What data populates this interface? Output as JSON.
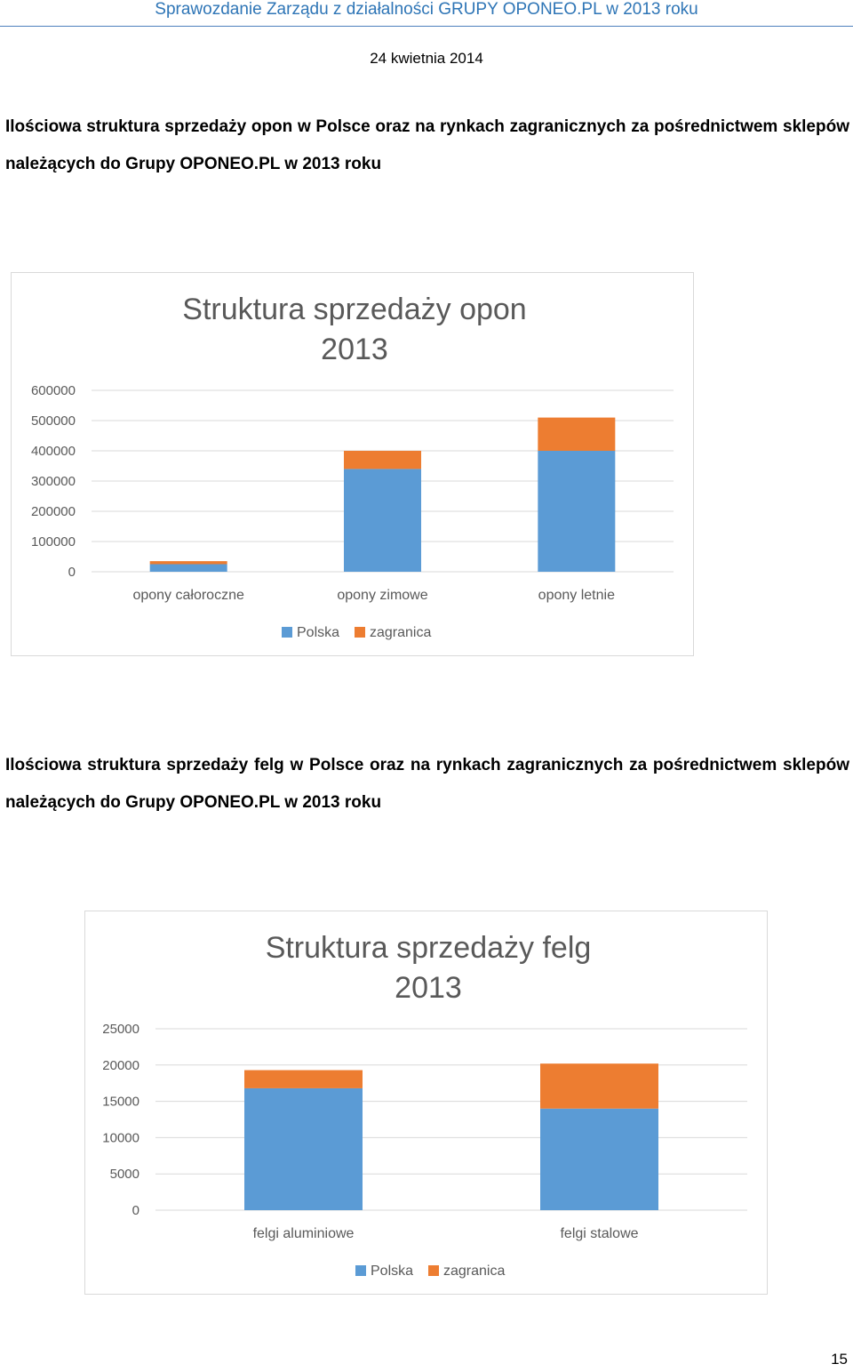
{
  "header": {
    "title": "Sprawozdanie Zarządu z działalności GRUPY OPONEO.PL w 2013 roku",
    "date": "24 kwietnia 2014"
  },
  "section1": {
    "heading": "Ilościowa struktura sprzedaży opon w Polsce oraz na rynkach zagranicznych za pośrednictwem sklepów należących do Grupy OPONEO.PL w 2013 roku"
  },
  "section2": {
    "heading": "Ilościowa struktura sprzedaży felg w Polsce oraz na rynkach zagranicznych za pośrednictwem sklepów należących do Grupy OPONEO.PL w 2013 roku"
  },
  "colors": {
    "polska": "#5b9bd5",
    "zagranica": "#ed7d31",
    "grid": "#d9d9d9",
    "text": "#595959"
  },
  "chart_data": [
    {
      "type": "bar",
      "stacked": true,
      "title": "Struktura sprzedaży opon 2013",
      "title_lines": [
        "Struktura sprzedaży opon",
        "2013"
      ],
      "categories": [
        "opony całoroczne",
        "opony zimowe",
        "opony letnie"
      ],
      "series": [
        {
          "name": "Polska",
          "values": [
            25000,
            340000,
            400000
          ]
        },
        {
          "name": "zagranica",
          "values": [
            10000,
            60000,
            110000
          ]
        }
      ],
      "yticks": [
        "0",
        "100000",
        "200000",
        "300000",
        "400000",
        "500000",
        "600000"
      ],
      "ylim": [
        0,
        600000
      ],
      "grid": true,
      "legend": "bottom"
    },
    {
      "type": "bar",
      "stacked": true,
      "title": "Struktura sprzedaży felg 2013",
      "title_lines": [
        "Struktura sprzedaży felg",
        "2013"
      ],
      "categories": [
        "felgi aluminiowe",
        "felgi stalowe"
      ],
      "series": [
        {
          "name": "Polska",
          "values": [
            16800,
            14000
          ]
        },
        {
          "name": "zagranica",
          "values": [
            2500,
            6200
          ]
        }
      ],
      "yticks": [
        "0",
        "5000",
        "10000",
        "15000",
        "20000",
        "25000"
      ],
      "ylim": [
        0,
        25000
      ],
      "grid": true,
      "legend": "bottom"
    }
  ],
  "footer": {
    "page_number": "15"
  }
}
